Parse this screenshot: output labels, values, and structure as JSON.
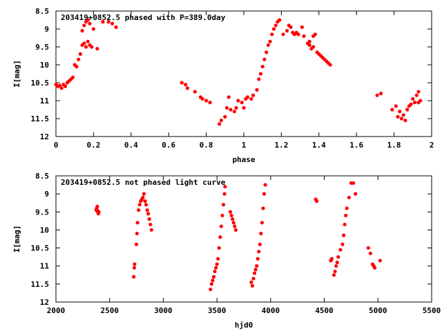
{
  "chart_data": [
    {
      "type": "scatter",
      "title": "203419+0852.5 phased with P=389.0day",
      "xlabel": "phase",
      "ylabel": "I[mag]",
      "xlim": [
        0,
        2
      ],
      "ylim": [
        12,
        8.5
      ],
      "x_ticks": [
        "0",
        "0.2",
        "0.4",
        "0.6",
        "0.8",
        "1",
        "1.2",
        "1.4",
        "1.6",
        "1.8",
        "2"
      ],
      "y_ticks": [
        "8.5",
        "9",
        "9.5",
        "10",
        "10.5",
        "11",
        "11.5",
        "12"
      ],
      "x_tick_values": [
        0,
        0.2,
        0.4,
        0.6,
        0.8,
        1.0,
        1.2,
        1.4,
        1.6,
        1.8,
        2.0
      ],
      "y_tick_values": [
        8.5,
        9,
        9.5,
        10,
        10.5,
        11,
        11.5,
        12
      ],
      "grid": false,
      "marker_color": "#ff0000",
      "series": [
        {
          "points": [
            [
              0.0,
              10.55
            ],
            [
              0.01,
              10.6
            ],
            [
              0.02,
              10.58
            ],
            [
              0.03,
              10.65
            ],
            [
              0.04,
              10.55
            ],
            [
              0.05,
              10.6
            ],
            [
              0.06,
              10.5
            ],
            [
              0.07,
              10.45
            ],
            [
              0.08,
              10.4
            ],
            [
              0.09,
              10.35
            ],
            [
              0.1,
              10.0
            ],
            [
              0.11,
              10.05
            ],
            [
              0.12,
              9.85
            ],
            [
              0.13,
              9.7
            ],
            [
              0.14,
              9.45
            ],
            [
              0.15,
              9.4
            ],
            [
              0.16,
              9.5
            ],
            [
              0.17,
              9.35
            ],
            [
              0.18,
              9.45
            ],
            [
              0.19,
              9.5
            ],
            [
              0.14,
              9.05
            ],
            [
              0.15,
              8.9
            ],
            [
              0.16,
              8.8
            ],
            [
              0.17,
              8.75
            ],
            [
              0.18,
              8.85
            ],
            [
              0.2,
              9.0
            ],
            [
              0.22,
              9.55
            ],
            [
              0.25,
              8.8
            ],
            [
              0.28,
              8.8
            ],
            [
              0.3,
              8.85
            ],
            [
              0.32,
              8.95
            ],
            [
              0.67,
              10.5
            ],
            [
              0.69,
              10.55
            ],
            [
              0.7,
              10.65
            ],
            [
              0.74,
              10.75
            ],
            [
              0.77,
              10.9
            ],
            [
              0.78,
              10.95
            ],
            [
              0.8,
              11.0
            ],
            [
              0.82,
              11.05
            ],
            [
              0.87,
              11.65
            ],
            [
              0.88,
              11.55
            ],
            [
              0.9,
              11.45
            ],
            [
              0.91,
              11.2
            ],
            [
              0.92,
              10.9
            ],
            [
              0.93,
              11.25
            ],
            [
              0.95,
              11.3
            ],
            [
              0.96,
              11.2
            ],
            [
              0.97,
              11.0
            ],
            [
              0.99,
              11.05
            ],
            [
              1.0,
              11.2
            ],
            [
              1.01,
              10.95
            ],
            [
              1.02,
              10.9
            ],
            [
              1.04,
              10.95
            ],
            [
              1.05,
              10.85
            ],
            [
              1.07,
              10.7
            ],
            [
              1.08,
              10.4
            ],
            [
              1.09,
              10.25
            ],
            [
              1.1,
              10.05
            ],
            [
              1.11,
              9.85
            ],
            [
              1.12,
              9.65
            ],
            [
              1.13,
              9.45
            ],
            [
              1.14,
              9.35
            ],
            [
              1.15,
              9.15
            ],
            [
              1.16,
              9.0
            ],
            [
              1.17,
              8.9
            ],
            [
              1.18,
              8.8
            ],
            [
              1.19,
              8.75
            ],
            [
              1.21,
              9.15
            ],
            [
              1.23,
              9.05
            ],
            [
              1.24,
              8.9
            ],
            [
              1.25,
              8.95
            ],
            [
              1.26,
              9.1
            ],
            [
              1.27,
              9.15
            ],
            [
              1.28,
              9.1
            ],
            [
              1.29,
              9.15
            ],
            [
              1.31,
              8.95
            ],
            [
              1.32,
              9.2
            ],
            [
              1.34,
              9.4
            ],
            [
              1.35,
              9.45
            ],
            [
              1.36,
              9.55
            ],
            [
              1.37,
              9.2
            ],
            [
              1.38,
              9.15
            ],
            [
              1.39,
              9.65
            ],
            [
              1.4,
              9.7
            ],
            [
              1.41,
              9.75
            ],
            [
              1.42,
              9.8
            ],
            [
              1.43,
              9.85
            ],
            [
              1.44,
              9.9
            ],
            [
              1.45,
              9.95
            ],
            [
              1.46,
              10.0
            ],
            [
              1.35,
              9.35
            ],
            [
              1.37,
              9.5
            ],
            [
              1.71,
              10.85
            ],
            [
              1.73,
              10.8
            ],
            [
              1.79,
              11.25
            ],
            [
              1.81,
              11.15
            ],
            [
              1.82,
              11.45
            ],
            [
              1.83,
              11.3
            ],
            [
              1.84,
              11.5
            ],
            [
              1.85,
              11.4
            ],
            [
              1.86,
              11.55
            ],
            [
              1.87,
              11.25
            ],
            [
              1.88,
              11.15
            ],
            [
              1.89,
              11.1
            ],
            [
              1.9,
              10.95
            ],
            [
              1.91,
              11.05
            ],
            [
              1.92,
              10.85
            ],
            [
              1.93,
              10.75
            ],
            [
              1.93,
              11.05
            ],
            [
              1.94,
              11.0
            ]
          ]
        }
      ]
    },
    {
      "type": "scatter",
      "title": "203419+0852.5 not phased light curve",
      "xlabel": "hjd0",
      "ylabel": "I[mag]",
      "xlim": [
        2000,
        5500
      ],
      "ylim": [
        12,
        8.5
      ],
      "x_ticks": [
        "2000",
        "2500",
        "3000",
        "3500",
        "4000",
        "4500",
        "5000",
        "5500"
      ],
      "y_ticks": [
        "8.5",
        "9",
        "9.5",
        "10",
        "10.5",
        "11",
        "11.5",
        "12"
      ],
      "x_tick_values": [
        2000,
        2500,
        3000,
        3500,
        4000,
        4500,
        5000,
        5500
      ],
      "y_tick_values": [
        8.5,
        9,
        9.5,
        10,
        10.5,
        11,
        11.5,
        12
      ],
      "grid": false,
      "marker_color": "#ff0000",
      "series": [
        {
          "points": [
            [
              2375,
              9.45
            ],
            [
              2380,
              9.4
            ],
            [
              2385,
              9.35
            ],
            [
              2390,
              9.5
            ],
            [
              2395,
              9.55
            ],
            [
              2400,
              9.5
            ],
            [
              2383,
              9.45
            ],
            [
              2725,
              11.3
            ],
            [
              2730,
              11.05
            ],
            [
              2733,
              10.95
            ],
            [
              2750,
              10.4
            ],
            [
              2755,
              10.1
            ],
            [
              2760,
              9.8
            ],
            [
              2770,
              9.45
            ],
            [
              2780,
              9.3
            ],
            [
              2790,
              9.2
            ],
            [
              2800,
              9.15
            ],
            [
              2810,
              9.1
            ],
            [
              2820,
              9.0
            ],
            [
              2830,
              9.2
            ],
            [
              2840,
              9.3
            ],
            [
              2850,
              9.45
            ],
            [
              2860,
              9.55
            ],
            [
              2870,
              9.7
            ],
            [
              2880,
              9.85
            ],
            [
              2890,
              10.0
            ],
            [
              3440,
              11.65
            ],
            [
              3450,
              11.5
            ],
            [
              3460,
              11.4
            ],
            [
              3470,
              11.3
            ],
            [
              3480,
              11.15
            ],
            [
              3490,
              11.05
            ],
            [
              3500,
              10.95
            ],
            [
              3510,
              10.8
            ],
            [
              3520,
              10.5
            ],
            [
              3530,
              10.2
            ],
            [
              3540,
              9.9
            ],
            [
              3550,
              9.6
            ],
            [
              3560,
              9.3
            ],
            [
              3570,
              9.0
            ],
            [
              3575,
              8.8
            ],
            [
              3625,
              9.5
            ],
            [
              3635,
              9.6
            ],
            [
              3645,
              9.7
            ],
            [
              3655,
              9.8
            ],
            [
              3665,
              9.9
            ],
            [
              3675,
              10.0
            ],
            [
              3820,
              11.45
            ],
            [
              3830,
              11.55
            ],
            [
              3840,
              11.35
            ],
            [
              3850,
              11.2
            ],
            [
              3860,
              11.1
            ],
            [
              3870,
              11.0
            ],
            [
              3880,
              10.8
            ],
            [
              3890,
              10.6
            ],
            [
              3900,
              10.4
            ],
            [
              3910,
              10.1
            ],
            [
              3920,
              9.8
            ],
            [
              3930,
              9.4
            ],
            [
              3940,
              9.0
            ],
            [
              3950,
              8.75
            ],
            [
              4420,
              9.15
            ],
            [
              4430,
              9.2
            ],
            [
              4560,
              10.85
            ],
            [
              4570,
              10.8
            ],
            [
              4590,
              11.25
            ],
            [
              4600,
              11.15
            ],
            [
              4610,
              11.0
            ],
            [
              4620,
              10.9
            ],
            [
              4630,
              10.75
            ],
            [
              4650,
              10.55
            ],
            [
              4670,
              10.4
            ],
            [
              4680,
              10.15
            ],
            [
              4690,
              9.85
            ],
            [
              4700,
              9.6
            ],
            [
              4710,
              9.4
            ],
            [
              4730,
              9.1
            ],
            [
              4750,
              8.7
            ],
            [
              4770,
              8.7
            ],
            [
              4790,
              9.0
            ],
            [
              4910,
              10.5
            ],
            [
              4930,
              10.65
            ],
            [
              4950,
              10.95
            ],
            [
              4960,
              11.0
            ],
            [
              4970,
              11.05
            ],
            [
              5020,
              10.85
            ]
          ]
        }
      ]
    }
  ]
}
